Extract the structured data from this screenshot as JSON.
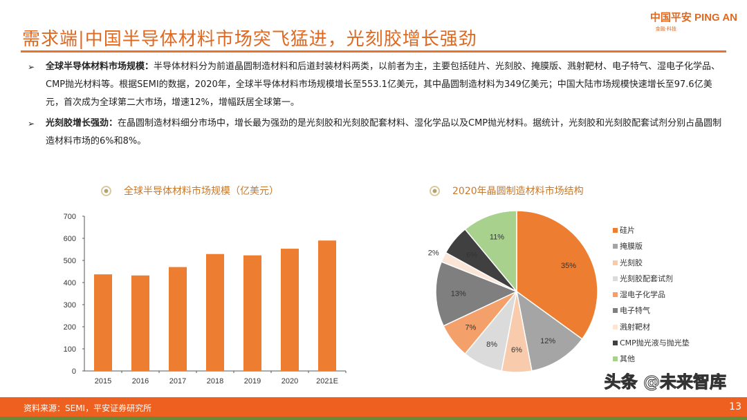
{
  "header": {
    "title": "需求端|中国半导体材料市场突飞猛进，光刻胶增长强劲",
    "logo": "中国平安 PING AN",
    "logo_sub": "金融·科技"
  },
  "bullets": [
    {
      "heading": "全球半导体材料市场规模：",
      "text": "半导体材料分为前道晶圆制造材料和后道封装材料两类，以前者为主，主要包括硅片、光刻胶、掩膜版、溅射靶材、电子特气、湿电子化学品、CMP抛光材料等。根据SEMI的数据，2020年，全球半导体材料市场规模增长至553.1亿美元，其中晶圆制造材料为349亿美元；中国大陆市场规模快速增长至97.6亿美元，首次成为全球第二大市场，增速12%，增幅跃居全球第一。"
    },
    {
      "heading": "光刻胶增长强劲：",
      "text": "在晶圆制造材料细分市场中，增长最为强劲的是光刻胶和光刻胶配套材料、湿化学品以及CMP抛光材料。据统计，光刻胶和光刻胶配套试剂分别占晶圆制造材料市场的6%和8%。"
    }
  ],
  "chart_data": [
    {
      "type": "bar",
      "title": "全球半导体材料市场规模（亿美元）",
      "categories": [
        "2015",
        "2016",
        "2017",
        "2018",
        "2019",
        "2020",
        "2021E"
      ],
      "values": [
        437,
        432,
        470,
        529,
        523,
        553,
        590
      ],
      "ylim": [
        0,
        700
      ],
      "yticks": [
        0,
        100,
        200,
        300,
        400,
        500,
        600,
        700
      ],
      "color": "#ed7d31",
      "grid": false
    },
    {
      "type": "pie",
      "title": "2020年晶圆制造材料市场结构",
      "legend_position": "right",
      "slices": [
        {
          "name": "硅片",
          "value": 35,
          "color": "#ed7d31"
        },
        {
          "name": "掩膜版",
          "value": 12,
          "color": "#a5a5a5"
        },
        {
          "name": "光刻胶",
          "value": 6,
          "color": "#f8cbad"
        },
        {
          "name": "光刻胶配套试剂",
          "value": 8,
          "color": "#dbdbdb"
        },
        {
          "name": "湿电子化学品",
          "value": 7,
          "color": "#f4a06a"
        },
        {
          "name": "电子特气",
          "value": 13,
          "color": "#7f7f7f"
        },
        {
          "name": "溅射靶材",
          "value": 2,
          "color": "#fbe5d6"
        },
        {
          "name": "CMP抛光液与抛光垫",
          "value": 6,
          "color": "#404040"
        },
        {
          "name": "其他",
          "value": 11,
          "color": "#a9d18e"
        }
      ]
    }
  ],
  "footer": {
    "source": "资料来源：SEMI，平安证券研究所",
    "page": "13",
    "watermark": "头条 @未来智库"
  }
}
